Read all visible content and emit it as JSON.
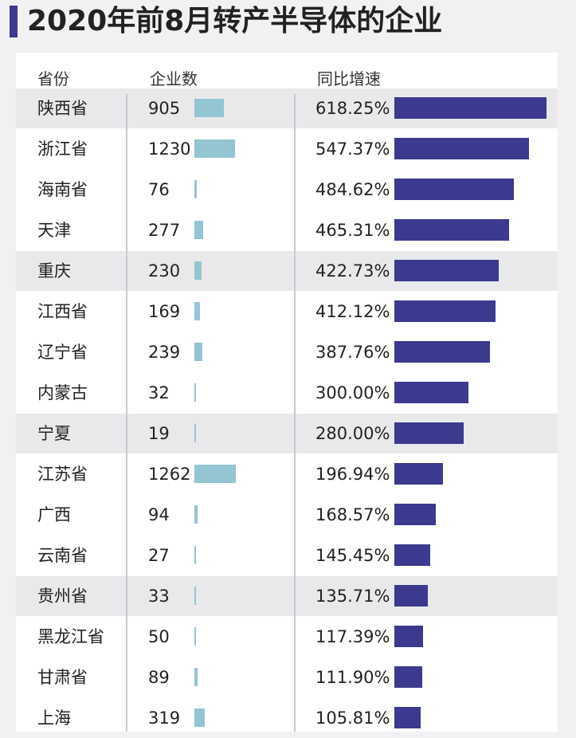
{
  "title": "2020年前8月转产半导体的企业",
  "headers": {
    "province": "省份",
    "count": "企业数",
    "growth": "同比增速"
  },
  "colors": {
    "accent": "#3b3a8e",
    "count_bar": "#94c5d3",
    "shaded_row": "#e9e9eb"
  },
  "chart_data": {
    "type": "table",
    "columns": [
      "省份",
      "企业数",
      "同比增速"
    ],
    "rows": [
      {
        "province": "陕西省",
        "count": 905,
        "growth": 618.25,
        "growth_label": "618.25%",
        "shaded": true
      },
      {
        "province": "浙江省",
        "count": 1230,
        "growth": 547.37,
        "growth_label": "547.37%",
        "shaded": false
      },
      {
        "province": "海南省",
        "count": 76,
        "growth": 484.62,
        "growth_label": "484.62%",
        "shaded": false
      },
      {
        "province": "天津",
        "count": 277,
        "growth": 465.31,
        "growth_label": "465.31%",
        "shaded": false
      },
      {
        "province": "重庆",
        "count": 230,
        "growth": 422.73,
        "growth_label": "422.73%",
        "shaded": true
      },
      {
        "province": "江西省",
        "count": 169,
        "growth": 412.12,
        "growth_label": "412.12%",
        "shaded": false
      },
      {
        "province": "辽宁省",
        "count": 239,
        "growth": 387.76,
        "growth_label": "387.76%",
        "shaded": false
      },
      {
        "province": "内蒙古",
        "count": 32,
        "growth": 300.0,
        "growth_label": "300.00%",
        "shaded": false
      },
      {
        "province": "宁夏",
        "count": 19,
        "growth": 280.0,
        "growth_label": "280.00%",
        "shaded": true
      },
      {
        "province": "江苏省",
        "count": 1262,
        "growth": 196.94,
        "growth_label": "196.94%",
        "shaded": false
      },
      {
        "province": "广西",
        "count": 94,
        "growth": 168.57,
        "growth_label": "168.57%",
        "shaded": false
      },
      {
        "province": "云南省",
        "count": 27,
        "growth": 145.45,
        "growth_label": "145.45%",
        "shaded": false
      },
      {
        "province": "贵州省",
        "count": 33,
        "growth": 135.71,
        "growth_label": "135.71%",
        "shaded": true
      },
      {
        "province": "黑龙江省",
        "count": 50,
        "growth": 117.39,
        "growth_label": "117.39%",
        "shaded": false
      },
      {
        "province": "甘肃省",
        "count": 89,
        "growth": 111.9,
        "growth_label": "111.90%",
        "shaded": false
      },
      {
        "province": "上海",
        "count": 319,
        "growth": 105.81,
        "growth_label": "105.81%",
        "shaded": false
      }
    ]
  }
}
